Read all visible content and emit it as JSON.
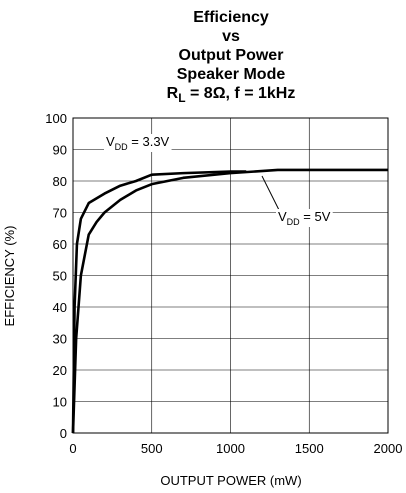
{
  "chart_data": {
    "type": "line",
    "title": [
      "Efficiency",
      "vs",
      "Output Power",
      "Speaker Mode",
      [
        "R",
        "L",
        " = 8Ω, f = 1kHz"
      ]
    ],
    "x_label": "OUTPUT POWER (mW)",
    "y_label": "EFFICIENCY (%)",
    "xlim": [
      0,
      2000
    ],
    "xticks": [
      0,
      500,
      1000,
      1500,
      2000
    ],
    "ylim": [
      0,
      100
    ],
    "yticks": [
      0,
      10,
      20,
      30,
      40,
      50,
      60,
      70,
      80,
      90,
      100
    ],
    "grid": true,
    "series": [
      {
        "label": [
          "V",
          "DD",
          " = 3.3V"
        ],
        "color": "#000000",
        "x": [
          0,
          10,
          25,
          50,
          100,
          200,
          300,
          400,
          500,
          700,
          1000,
          1100
        ],
        "values": [
          0,
          40,
          60,
          68,
          73,
          76,
          78.5,
          80,
          82,
          82.5,
          83,
          83
        ]
      },
      {
        "label": [
          "V",
          "DD",
          " = 5V"
        ],
        "color": "#000000",
        "x": [
          0,
          20,
          50,
          100,
          150,
          200,
          300,
          400,
          500,
          700,
          1000,
          1300,
          2000
        ],
        "values": [
          0,
          30,
          50,
          63,
          67,
          70,
          74,
          77,
          79,
          81,
          82.5,
          83.5,
          83.5
        ]
      }
    ]
  }
}
